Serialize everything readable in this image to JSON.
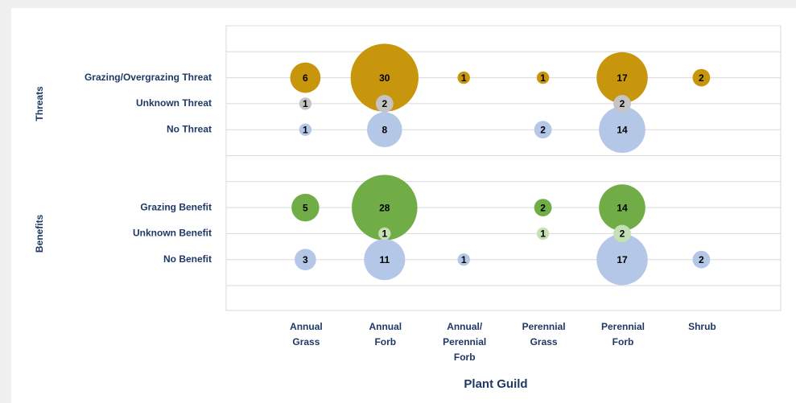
{
  "chart_data": {
    "type": "categorical-bubble",
    "x_label": "Plant Guild",
    "categories": [
      [
        "Annual",
        "Grass"
      ],
      [
        "Annual",
        "Forb"
      ],
      [
        "Annual/",
        "Perennial",
        "Forb"
      ],
      [
        "Perennial",
        "Grass"
      ],
      [
        "Perennial",
        "Forb"
      ],
      [
        "Shrub"
      ]
    ],
    "groups": [
      {
        "name": "Threats",
        "series": [
          {
            "name": "Grazing/Overgrazing Threat",
            "color": "#c8960c",
            "values": [
              6,
              30,
              1,
              1,
              17,
              2
            ]
          },
          {
            "name": "Unknown Threat",
            "color": "#c4c4c4",
            "values": [
              1,
              2,
              null,
              null,
              2,
              null
            ]
          },
          {
            "name": "No Threat ",
            "color": "#b4c7e7",
            "values": [
              1,
              8,
              null,
              2,
              14,
              null
            ]
          }
        ]
      },
      {
        "name": "Benefits",
        "series": [
          {
            "name": "Grazing Benefit",
            "color": "#70ad47",
            "values": [
              5,
              28,
              null,
              2,
              14,
              null
            ]
          },
          {
            "name": "Unknown Benefit",
            "color": "#c5e0b4",
            "values": [
              null,
              1,
              null,
              1,
              2,
              null
            ]
          },
          {
            "name": "No Benefit",
            "color": "#b4c7e7",
            "values": [
              3,
              11,
              1,
              null,
              17,
              2
            ]
          }
        ]
      }
    ]
  }
}
